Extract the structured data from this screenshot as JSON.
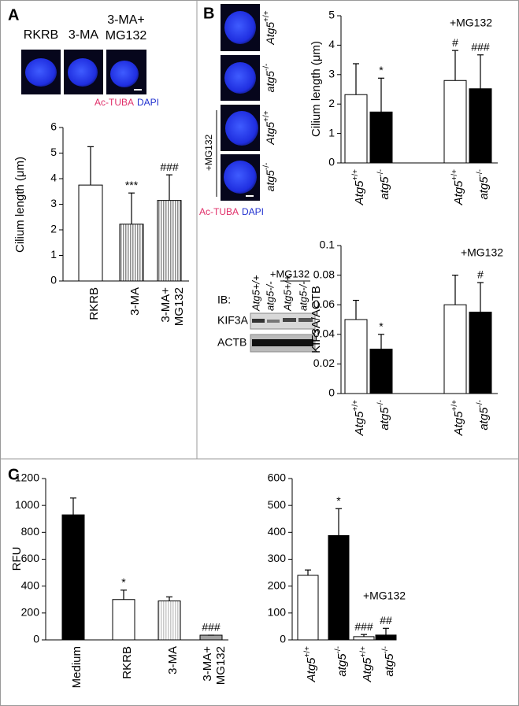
{
  "figure": {
    "panel_labels": [
      "A",
      "B",
      "C"
    ],
    "micrographs_a": {
      "labels": [
        "RKRB",
        "3-MA",
        "3-MA+ MG132"
      ],
      "stain_1": "Ac-TUBA",
      "stain_2": "DAPI"
    },
    "micrographs_b": {
      "labels": [
        "Atg5+/+",
        "atg5-/-",
        "Atg5+/+",
        "atg5-/-"
      ],
      "treatment": "+MG132",
      "stain_1": "Ac-TUBA",
      "stain_2": "DAPI"
    },
    "blot": {
      "lanes": [
        "Atg5+/+",
        "atg5-/-",
        "Atg5+/+",
        "atg5-/-"
      ],
      "treatment": "+MG132",
      "ib": "IB:",
      "rows": [
        "KIF3A",
        "ACTB"
      ]
    }
  },
  "chart_data": [
    {
      "type": "bar",
      "ylabel": "Cilium length (μm)",
      "categories": [
        "RKRB",
        "3-MA",
        "3-MA+ MG132"
      ],
      "values": [
        3.75,
        2.22,
        3.15
      ],
      "errors": [
        1.5,
        1.22,
        1.0
      ],
      "colors": [
        "#ffffff",
        "#8c8c8c",
        "#8c8c8c"
      ],
      "hatch": [
        false,
        true,
        true
      ],
      "bar_labels": [
        null,
        "***",
        "###"
      ],
      "ylim": [
        0,
        6
      ],
      "yticks": [
        0,
        1,
        2,
        3,
        4,
        5,
        6
      ],
      "italic_labels": false
    },
    {
      "type": "bar",
      "ylabel": "Cilium length (μm)",
      "categories": [
        "Atg5+/+",
        "atg5-/-",
        "Atg5+/+",
        "atg5-/-"
      ],
      "values": [
        2.32,
        1.73,
        2.8,
        2.52
      ],
      "errors": [
        1.05,
        1.15,
        1.02,
        1.15
      ],
      "colors": [
        "#ffffff",
        "#000000",
        "#ffffff",
        "#000000"
      ],
      "hatch": [
        false,
        false,
        false,
        false
      ],
      "bar_labels": [
        null,
        "*",
        "#",
        "###"
      ],
      "annotation": "+MG132",
      "ylim": [
        0,
        5
      ],
      "yticks": [
        0,
        1,
        2,
        3,
        4,
        5
      ],
      "italic_labels": true
    },
    {
      "type": "bar",
      "ylabel": "KIF3A/ACTB",
      "categories": [
        "Atg5+/+",
        "atg5-/-",
        "Atg5+/+",
        "atg5-/-"
      ],
      "values": [
        0.05,
        0.03,
        0.06,
        0.055
      ],
      "errors": [
        0.013,
        0.01,
        0.02,
        0.02
      ],
      "colors": [
        "#ffffff",
        "#000000",
        "#ffffff",
        "#000000"
      ],
      "hatch": [
        false,
        false,
        false,
        false
      ],
      "bar_labels": [
        null,
        "*",
        null,
        "#"
      ],
      "annotation": "+MG132",
      "ylim": [
        0,
        0.1
      ],
      "yticks": [
        0,
        0.02,
        0.04,
        0.06,
        0.08,
        0.1
      ],
      "italic_labels": true
    },
    {
      "type": "bar",
      "ylabel": "RFU",
      "categories": [
        "Medium",
        "RKRB",
        "3-MA",
        "3-MA+ MG132"
      ],
      "values": [
        930,
        300,
        290,
        35
      ],
      "errors": [
        125,
        70,
        30,
        0
      ],
      "colors": [
        "#000000",
        "#ffffff",
        "#c8c8c8",
        "#a0a0a0"
      ],
      "hatch": [
        false,
        false,
        true,
        false
      ],
      "bar_labels": [
        null,
        "*",
        null,
        "###"
      ],
      "ylim": [
        0,
        1200
      ],
      "yticks": [
        0,
        200,
        400,
        600,
        800,
        1000,
        1200
      ],
      "italic_labels": false
    },
    {
      "type": "bar",
      "categories": [
        "Atg5+/+",
        "atg5-/-",
        "Atg5+/+",
        "atg5-/-"
      ],
      "values": [
        240,
        388,
        12,
        18
      ],
      "errors": [
        20,
        100,
        8,
        25
      ],
      "colors": [
        "#ffffff",
        "#000000",
        "#ffffff",
        "#000000"
      ],
      "hatch": [
        false,
        false,
        false,
        false
      ],
      "bar_labels": [
        null,
        "*",
        "###",
        "##"
      ],
      "annotation": "+MG132",
      "ylim": [
        0,
        600
      ],
      "yticks": [
        0,
        100,
        200,
        300,
        400,
        500,
        600
      ],
      "italic_labels": true
    }
  ]
}
